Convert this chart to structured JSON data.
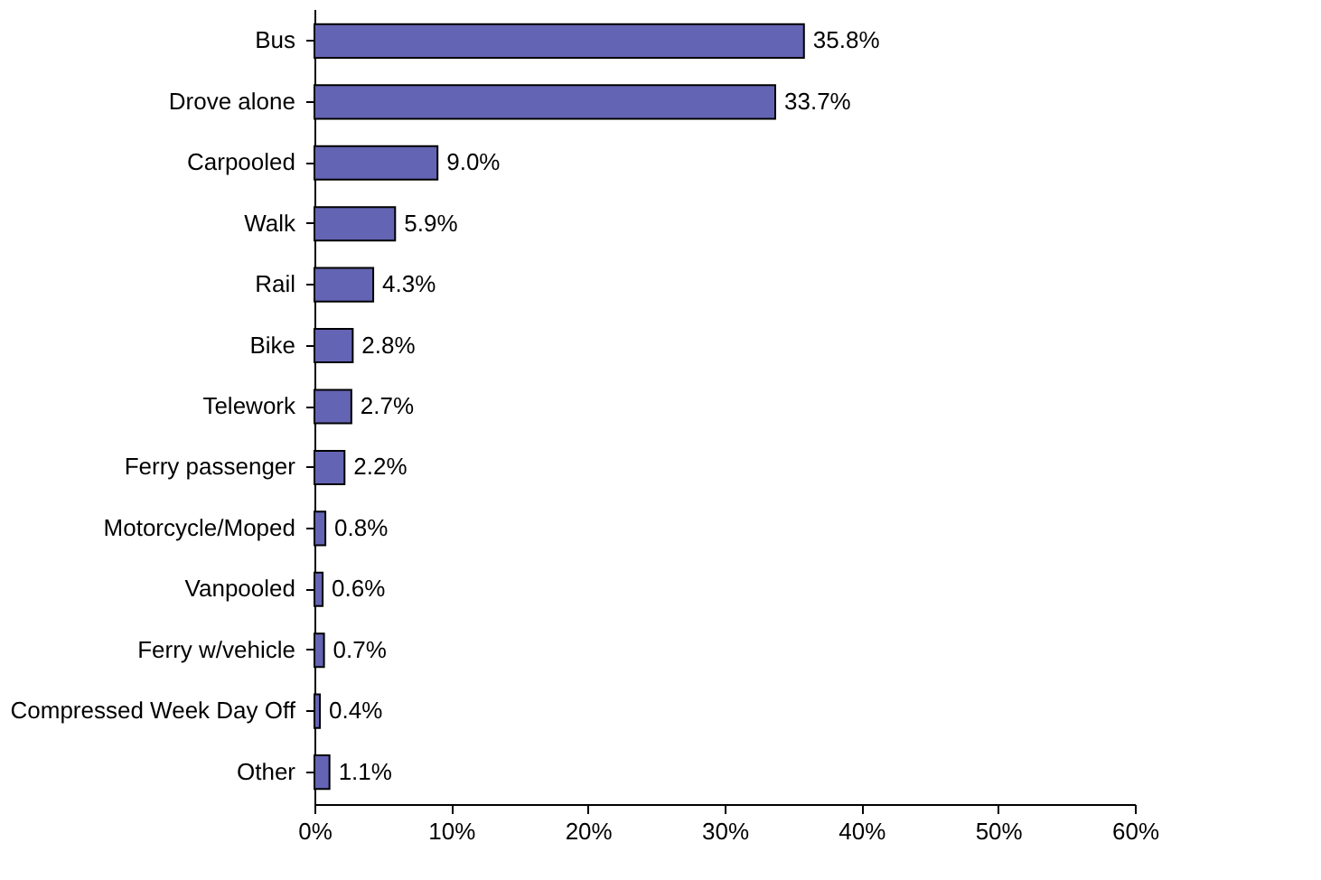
{
  "chart_data": {
    "type": "bar",
    "orientation": "horizontal",
    "categories": [
      "Bus",
      "Drove alone",
      "Carpooled",
      "Walk",
      "Rail",
      "Bike",
      "Telework",
      "Ferry passenger",
      "Motorcycle/Moped",
      "Vanpooled",
      "Ferry w/vehicle",
      "Compressed Week Day Off",
      "Other"
    ],
    "values": [
      35.8,
      33.7,
      9.0,
      5.9,
      4.3,
      2.8,
      2.7,
      2.2,
      0.8,
      0.6,
      0.7,
      0.4,
      1.1
    ],
    "value_labels": [
      "35.8%",
      "33.7%",
      "9.0%",
      "5.9%",
      "4.3%",
      "2.8%",
      "2.7%",
      "2.2%",
      "0.8%",
      "0.6%",
      "0.7%",
      "0.4%",
      "1.1%"
    ],
    "color": "#6464b4",
    "xlim": [
      0,
      60
    ],
    "xticks": [
      {
        "value": 0,
        "label": "0%"
      },
      {
        "value": 10,
        "label": "10%"
      },
      {
        "value": 20,
        "label": "20%"
      },
      {
        "value": 30,
        "label": "30%"
      },
      {
        "value": 40,
        "label": "40%"
      },
      {
        "value": 50,
        "label": "50%"
      },
      {
        "value": 60,
        "label": "60%"
      }
    ],
    "grid": false
  }
}
